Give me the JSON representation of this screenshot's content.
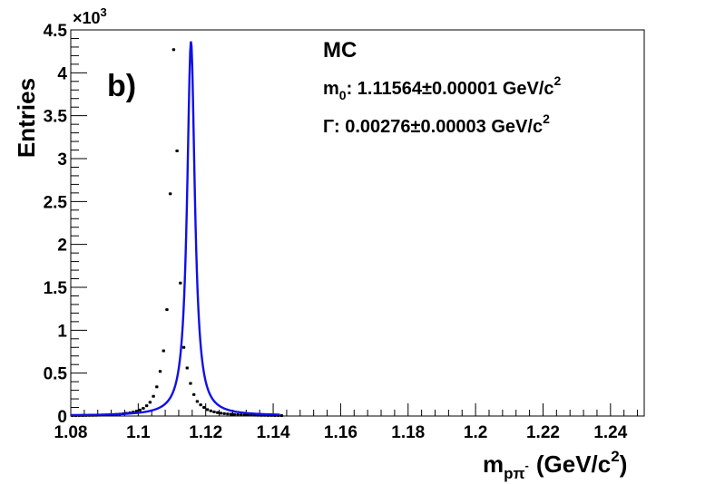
{
  "chart_data": {
    "type": "line",
    "subtitle": "b)",
    "xlabel": {
      "base": "m",
      "sub_main": "pπ",
      "sub_sup": "-",
      "unit": "(GeV/c",
      "unit_sup": "2",
      "unit_end": ")"
    },
    "ylabel": "Entries",
    "y_multiplier": {
      "base": "×10",
      "exp": "3"
    },
    "xlim": [
      1.08,
      1.25
    ],
    "ylim": [
      0,
      4.5
    ],
    "x_ticks": [
      "1.08",
      "1.1",
      "1.12",
      "1.14",
      "1.16",
      "1.18",
      "1.2",
      "1.22",
      "1.24"
    ],
    "y_ticks": [
      "0",
      "0.5",
      "1",
      "1.5",
      "2",
      "2.5",
      "3",
      "3.5",
      "4",
      "4.5"
    ],
    "grid": false,
    "annotations": {
      "label": "MC",
      "mass": {
        "sym": "m",
        "sub": "0",
        "text": ": 1.11564±0.00001 GeV/c",
        "sup": "2"
      },
      "width": {
        "text": "Γ: 0.00276±0.00003 GeV/c",
        "sup": "2"
      }
    },
    "fit": {
      "name": "",
      "color": "#1010e8",
      "m0": 1.11564,
      "gamma": 0.00276,
      "peak": 4.37,
      "background": 0.004
    },
    "series": [
      {
        "name": "",
        "color": "#000000",
        "x": [
          1.0805,
          1.0815,
          1.0825,
          1.0835,
          1.0845,
          1.0855,
          1.0865,
          1.0875,
          1.0885,
          1.0895,
          1.0905,
          1.0915,
          1.0925,
          1.0935,
          1.0945,
          1.0955,
          1.0965,
          1.0975,
          1.0985,
          1.0995,
          1.1005,
          1.1015,
          1.1025,
          1.1035,
          1.1045,
          1.1055,
          1.1065,
          1.1075,
          1.1085,
          1.1095,
          1.1105,
          1.1115,
          1.1125,
          1.1135,
          1.1145,
          1.1155,
          1.1165,
          1.1175,
          1.1185,
          1.1195,
          1.1205,
          1.1215,
          1.1225,
          1.1235,
          1.1245,
          1.1255,
          1.1265,
          1.1275,
          1.1285,
          1.1295,
          1.1305,
          1.1315,
          1.1325,
          1.1335,
          1.1345,
          1.1355,
          1.1365,
          1.1375,
          1.1385,
          1.1395,
          1.1405,
          1.1415,
          1.1425
        ],
        "y": [
          0.005,
          0.005,
          0.006,
          0.006,
          0.007,
          0.008,
          0.008,
          0.009,
          0.01,
          0.011,
          0.013,
          0.014,
          0.017,
          0.019,
          0.022,
          0.026,
          0.031,
          0.037,
          0.046,
          0.056,
          0.07,
          0.09,
          0.12,
          0.16,
          0.23,
          0.34,
          0.52,
          0.76,
          1.24,
          2.59,
          4.27,
          3.09,
          1.55,
          0.8,
          0.56,
          0.38,
          0.25,
          0.17,
          0.13,
          0.1,
          0.075,
          0.06,
          0.048,
          0.04,
          0.033,
          0.028,
          0.024,
          0.021,
          0.018,
          0.016,
          0.014,
          0.013,
          0.012,
          0.011,
          0.01,
          0.009,
          0.008,
          0.008,
          0.007,
          0.007,
          0.006,
          0.006,
          0.005
        ]
      }
    ]
  }
}
